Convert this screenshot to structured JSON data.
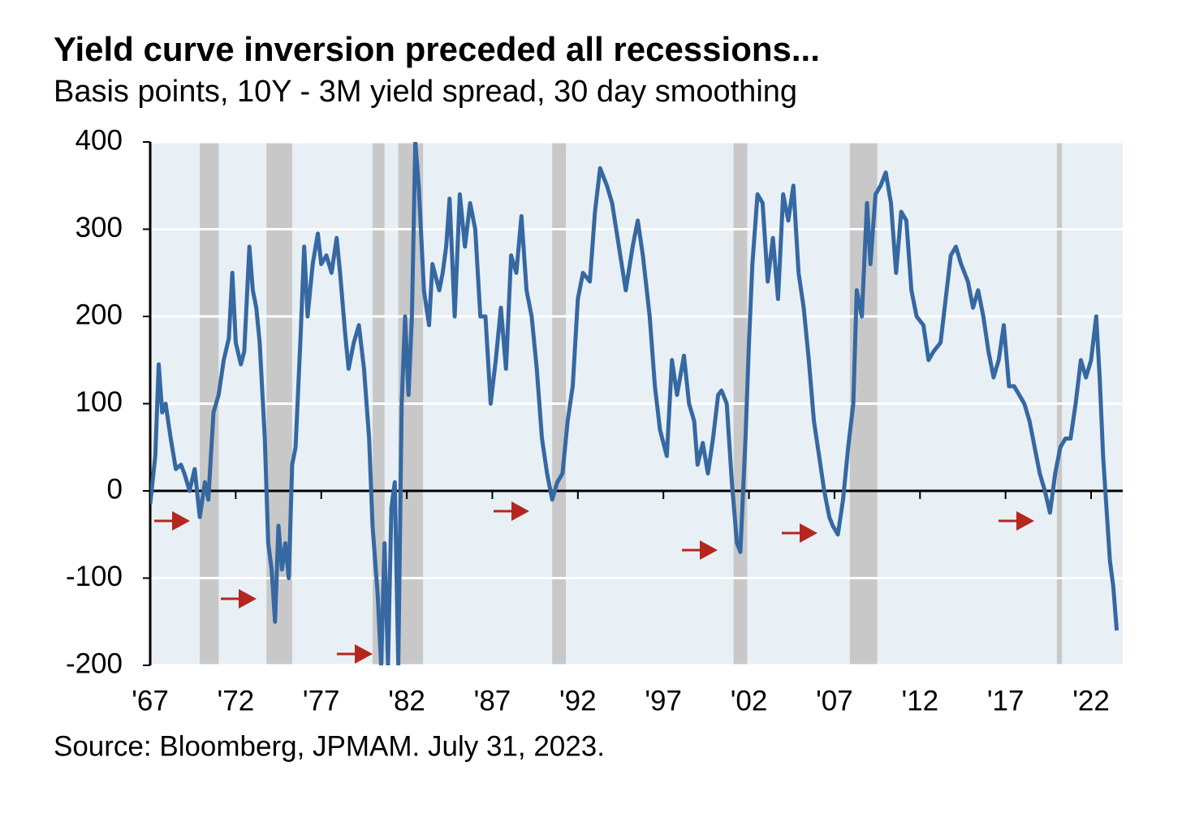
{
  "chart_data": {
    "type": "line",
    "title": "Yield curve inversion preceded all recessions...",
    "subtitle": "Basis points, 10Y - 3M yield spread, 30 day smoothing",
    "source": "Source: Bloomberg, JPMAM. July 31, 2023.",
    "color": "#3668a2",
    "background": "#e8f0f5",
    "recession_color": "#c8c8c8",
    "grid": true,
    "xlim": [
      1967,
      2023.85
    ],
    "ylim": [
      -200,
      400
    ],
    "yticks": [
      -200,
      -100,
      0,
      100,
      200,
      300,
      400
    ],
    "xticks": [
      {
        "value": 1967,
        "label": "'67"
      },
      {
        "value": 1972,
        "label": "'72"
      },
      {
        "value": 1977,
        "label": "'77"
      },
      {
        "value": 1982,
        "label": "'82"
      },
      {
        "value": 1987,
        "label": "'87"
      },
      {
        "value": 1992,
        "label": "'92"
      },
      {
        "value": 1997,
        "label": "'97"
      },
      {
        "value": 2002,
        "label": "'02"
      },
      {
        "value": 2007,
        "label": "'07"
      },
      {
        "value": 2012,
        "label": "'12"
      },
      {
        "value": 2017,
        "label": "'17"
      },
      {
        "value": 2022,
        "label": "'22"
      }
    ],
    "recessions": [
      [
        1969.9,
        1971.0
      ],
      [
        1973.8,
        1975.3
      ],
      [
        1980.0,
        1980.7
      ],
      [
        1981.5,
        1982.95
      ],
      [
        1990.5,
        1991.3
      ],
      [
        2001.1,
        2001.9
      ],
      [
        2007.9,
        2009.5
      ],
      [
        2020.0,
        2020.3
      ]
    ],
    "x": [
      1967.0,
      1967.3,
      1967.5,
      1967.7,
      1967.9,
      1968.2,
      1968.5,
      1968.8,
      1969.0,
      1969.3,
      1969.6,
      1969.9,
      1970.2,
      1970.4,
      1970.7,
      1971.0,
      1971.3,
      1971.6,
      1971.8,
      1972.0,
      1972.3,
      1972.5,
      1972.8,
      1973.0,
      1973.2,
      1973.4,
      1973.7,
      1973.9,
      1974.1,
      1974.3,
      1974.5,
      1974.7,
      1974.9,
      1975.1,
      1975.3,
      1975.5,
      1975.8,
      1976.0,
      1976.2,
      1976.5,
      1976.8,
      1977.0,
      1977.3,
      1977.6,
      1977.9,
      1978.1,
      1978.4,
      1978.6,
      1978.9,
      1979.2,
      1979.5,
      1979.8,
      1980.0,
      1980.3,
      1980.5,
      1980.7,
      1980.9,
      1981.1,
      1981.3,
      1981.5,
      1981.7,
      1981.9,
      1982.1,
      1982.3,
      1982.5,
      1982.7,
      1983.0,
      1983.3,
      1983.5,
      1983.9,
      1984.1,
      1984.3,
      1984.5,
      1984.8,
      1985.1,
      1985.4,
      1985.7,
      1986.0,
      1986.3,
      1986.6,
      1986.9,
      1987.2,
      1987.5,
      1987.8,
      1988.1,
      1988.4,
      1988.7,
      1989.0,
      1989.3,
      1989.6,
      1989.9,
      1990.2,
      1990.5,
      1990.8,
      1991.1,
      1991.4,
      1991.7,
      1992.0,
      1992.3,
      1992.7,
      1993.0,
      1993.3,
      1993.7,
      1994.0,
      1994.4,
      1994.8,
      1995.2,
      1995.5,
      1995.8,
      1996.2,
      1996.5,
      1996.8,
      1997.2,
      1997.5,
      1997.8,
      1998.2,
      1998.5,
      1998.8,
      1999.0,
      1999.3,
      1999.6,
      1999.9,
      2000.2,
      2000.4,
      2000.7,
      2001.0,
      2001.3,
      2001.5,
      2001.8,
      2002.0,
      2002.2,
      2002.5,
      2002.8,
      2003.1,
      2003.4,
      2003.7,
      2004.0,
      2004.3,
      2004.6,
      2004.9,
      2005.2,
      2005.5,
      2005.8,
      2006.1,
      2006.4,
      2006.7,
      2006.9,
      2007.2,
      2007.5,
      2007.8,
      2008.1,
      2008.3,
      2008.6,
      2008.9,
      2009.1,
      2009.4,
      2009.7,
      2010.0,
      2010.3,
      2010.6,
      2010.9,
      2011.2,
      2011.5,
      2011.8,
      2012.2,
      2012.5,
      2012.8,
      2013.2,
      2013.5,
      2013.8,
      2014.1,
      2014.4,
      2014.8,
      2015.1,
      2015.4,
      2015.7,
      2016.0,
      2016.3,
      2016.6,
      2016.9,
      2017.2,
      2017.5,
      2017.8,
      2018.1,
      2018.4,
      2018.7,
      2019.0,
      2019.3,
      2019.6,
      2019.9,
      2020.2,
      2020.5,
      2020.8,
      2021.1,
      2021.4,
      2021.7,
      2022.0,
      2022.3,
      2022.5,
      2022.7,
      2022.9,
      2023.1,
      2023.3,
      2023.5
    ],
    "values": [
      -15,
      40,
      145,
      90,
      100,
      60,
      25,
      30,
      20,
      0,
      25,
      -30,
      10,
      -10,
      90,
      110,
      150,
      175,
      250,
      170,
      145,
      160,
      280,
      230,
      210,
      170,
      60,
      -60,
      -90,
      -150,
      -40,
      -90,
      -60,
      -100,
      30,
      50,
      180,
      280,
      200,
      260,
      295,
      260,
      270,
      250,
      290,
      250,
      180,
      140,
      170,
      190,
      140,
      60,
      -40,
      -120,
      -200,
      -60,
      -200,
      -20,
      10,
      -200,
      100,
      200,
      110,
      200,
      400,
      350,
      230,
      190,
      260,
      230,
      250,
      280,
      335,
      200,
      340,
      280,
      330,
      300,
      200,
      200,
      100,
      150,
      210,
      140,
      270,
      250,
      315,
      230,
      200,
      140,
      60,
      20,
      -10,
      10,
      20,
      80,
      120,
      220,
      250,
      240,
      320,
      370,
      350,
      330,
      280,
      230,
      280,
      310,
      270,
      200,
      120,
      70,
      40,
      150,
      110,
      155,
      100,
      80,
      30,
      55,
      20,
      60,
      110,
      115,
      100,
      10,
      -60,
      -70,
      60,
      170,
      260,
      340,
      330,
      240,
      290,
      220,
      340,
      310,
      350,
      250,
      210,
      150,
      80,
      40,
      0,
      -30,
      -40,
      -50,
      -10,
      50,
      100,
      230,
      200,
      330,
      260,
      340,
      350,
      365,
      330,
      250,
      320,
      310,
      230,
      200,
      190,
      150,
      160,
      170,
      220,
      270,
      280,
      260,
      240,
      210,
      230,
      200,
      160,
      130,
      150,
      190,
      120,
      120,
      110,
      100,
      80,
      50,
      20,
      0,
      -25,
      20,
      50,
      60,
      60,
      100,
      150,
      130,
      150,
      200,
      130,
      40,
      -20,
      -80,
      -110,
      -160
    ]
  }
}
